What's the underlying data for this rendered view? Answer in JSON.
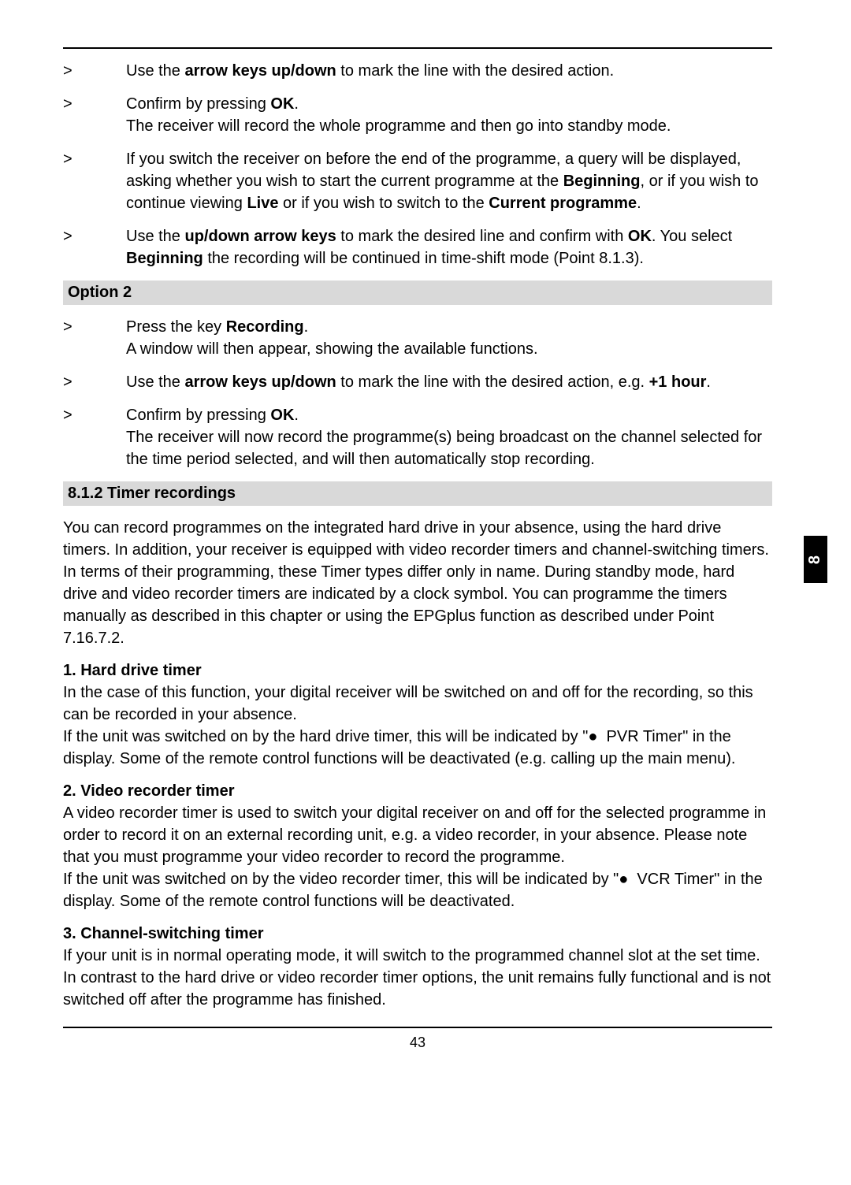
{
  "colors": {
    "text": "#000000",
    "background": "#ffffff",
    "section_bg": "#d9d9d9",
    "tab_bg": "#000000",
    "tab_text": "#ffffff",
    "rule": "#000000"
  },
  "typography": {
    "body_fontsize_pt": 15,
    "heading_fontsize_pt": 15,
    "font_family": "Arial"
  },
  "side_tab": "8",
  "page_number": "43",
  "bullets_top": [
    {
      "marker": ">",
      "html": "Use the <b class='heavy'>arrow keys up/down</b> to mark the line with the desired action."
    },
    {
      "marker": ">",
      "html": "Confirm by pressing <b class='heavy'>OK</b>.<br>The receiver will record the whole programme and then go into standby mode."
    },
    {
      "marker": ">",
      "html": "If you switch the receiver on before the end of the programme, a query will be displayed, asking whether you wish to start the current programme at the <b class='heavy'>Beginning</b>, or if you wish to continue viewing <b class='heavy'>Live</b> or if you wish to switch to the <b class='heavy'>Current programme</b>."
    },
    {
      "marker": ">",
      "html": "Use the <b class='heavy'>up/down arrow keys</b> to mark the desired line and confirm with <b class='heavy'>OK</b>. You select <b class='heavy'>Beginning</b> the recording will be continued in time-shift mode (Point 8.1.3)."
    }
  ],
  "section_option2": "Option 2",
  "bullets_option2": [
    {
      "marker": ">",
      "html": "Press the key <b class='heavy'>Recording</b>.<br>A window will then appear, showing the available functions."
    },
    {
      "marker": ">",
      "html": "Use the <b class='heavy'>arrow keys up/down</b> to mark the line with the desired action, e.g. <b class='heavy'>+1 hour</b>."
    },
    {
      "marker": ">",
      "html": "Confirm by pressing <b class='heavy'>OK</b>.<br>The receiver will now record the programme(s) being broadcast on the channel selected for the time period selected, and will then automatically stop recording."
    }
  ],
  "section_812": "8.1.2 Timer recordings",
  "para_812": "You can record programmes on the integrated hard drive in your absence, using the hard drive timers. In addition, your receiver is equipped with video recorder timers and channel-switching timers. In terms of their programming, these Timer types differ only in name. During standby mode, hard drive and video recorder timers are indicated by a clock symbol. You can programme the timers manually as described in this chapter or using the EPGplus function as described under Point 7.16.7.2.",
  "sub1_heading": "1. Hard drive timer",
  "sub1_para": "In the case of this function, your digital receiver will be switched on and off for the recording, so this can be recorded in your absence.<br>If the unit was switched on by the hard drive timer, this will be indicated by \"● &nbsp;PVR Timer\" in the display. Some of the remote control functions will be deactivated (e.g. calling up the main menu).",
  "sub2_heading": "2. Video recorder timer",
  "sub2_para": "A video recorder timer is used to switch your digital receiver on and off for the selected programme in order to record it on an external recording unit, e.g. a video recorder, in your absence. Please note that you must programme your video recorder to record the programme.<br>If the unit was switched on by the video recorder timer, this will be indicated by \"● &nbsp;VCR Timer\" in the display. Some of the remote control functions will be deactivated.",
  "sub3_heading": "3. Channel-switching timer",
  "sub3_para": "If your unit is in normal operating mode, it will switch to the programmed channel slot at the set time.<br>In contrast to the hard drive or video recorder timer options, the unit remains fully functional and is not switched off after the programme has finished."
}
